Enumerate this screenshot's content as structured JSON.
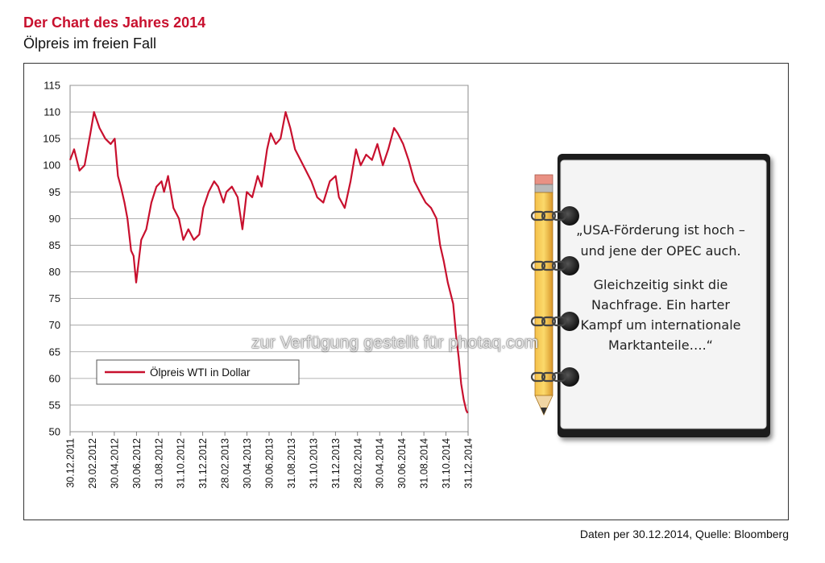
{
  "header": {
    "title": "Der Chart des Jahres 2014",
    "subtitle": "Ölpreis im freien Fall"
  },
  "footer": {
    "source": "Daten per 30.12.2014, Quelle: Bloomberg"
  },
  "watermark": "zur Verfügung gestellt für photaq.com",
  "note": {
    "lines": [
      "„USA-Förderung ist hoch –",
      "und jene der OPEC auch.",
      "",
      "Gleichzeitig sinkt die",
      "Nachfrage. Ein harter",
      "Kampf um internationale",
      "Marktanteile….“"
    ]
  },
  "colors": {
    "series": "#c8102e",
    "accent": "#c8102e",
    "grid": "#9a9a9a"
  },
  "chart_data": {
    "type": "line",
    "title": "",
    "xlabel": "",
    "ylabel": "",
    "ylim": [
      50,
      115
    ],
    "yticks": [
      50,
      55,
      60,
      65,
      70,
      75,
      80,
      85,
      90,
      95,
      100,
      105,
      110,
      115
    ],
    "xlim": [
      "2011-12-30",
      "2014-12-31"
    ],
    "xticks": [
      "30.12.2011",
      "29.02.2012",
      "30.04.2012",
      "30.06.2012",
      "31.08.2012",
      "31.10.2012",
      "31.12.2012",
      "28.02.2013",
      "30.04.2013",
      "30.06.2013",
      "31.08.2013",
      "31.10.2013",
      "31.12.2013",
      "28.02.2014",
      "30.04.2014",
      "30.06.2014",
      "31.08.2014",
      "31.10.2014",
      "31.12.2014"
    ],
    "grid": true,
    "legend_position": "lower-left",
    "series": [
      {
        "name": "Ölpreis WTI in Dollar",
        "x": [
          "2011-12-30",
          "2012-01-10",
          "2012-01-25",
          "2012-02-08",
          "2012-02-24",
          "2012-03-05",
          "2012-03-20",
          "2012-04-05",
          "2012-04-20",
          "2012-05-01",
          "2012-05-10",
          "2012-05-18",
          "2012-05-28",
          "2012-06-05",
          "2012-06-15",
          "2012-06-22",
          "2012-06-29",
          "2012-07-13",
          "2012-07-27",
          "2012-08-10",
          "2012-08-24",
          "2012-09-07",
          "2012-09-14",
          "2012-09-25",
          "2012-10-10",
          "2012-10-25",
          "2012-11-06",
          "2012-11-20",
          "2012-12-05",
          "2012-12-20",
          "2012-12-31",
          "2013-01-15",
          "2013-01-30",
          "2013-02-10",
          "2013-02-25",
          "2013-03-05",
          "2013-03-20",
          "2013-04-05",
          "2013-04-18",
          "2013-04-30",
          "2013-05-15",
          "2013-05-30",
          "2013-06-10",
          "2013-06-25",
          "2013-07-05",
          "2013-07-19",
          "2013-08-01",
          "2013-08-15",
          "2013-08-28",
          "2013-09-10",
          "2013-09-25",
          "2013-10-10",
          "2013-10-25",
          "2013-11-10",
          "2013-11-27",
          "2013-12-15",
          "2013-12-31",
          "2014-01-09",
          "2014-01-25",
          "2014-02-10",
          "2014-02-25",
          "2014-03-10",
          "2014-03-25",
          "2014-04-10",
          "2014-04-25",
          "2014-05-10",
          "2014-05-25",
          "2014-06-10",
          "2014-06-20",
          "2014-07-05",
          "2014-07-20",
          "2014-08-05",
          "2014-08-20",
          "2014-09-05",
          "2014-09-20",
          "2014-10-05",
          "2014-10-15",
          "2014-10-25",
          "2014-11-05",
          "2014-11-20",
          "2014-11-28",
          "2014-12-05",
          "2014-12-12",
          "2014-12-19",
          "2014-12-26",
          "2014-12-30"
        ],
        "values": [
          101,
          103,
          99,
          100,
          106,
          110,
          107,
          105,
          104,
          105,
          98,
          96,
          93,
          90,
          84,
          83,
          78,
          86,
          88,
          93,
          96,
          97,
          95,
          98,
          92,
          90,
          86,
          88,
          86,
          87,
          92,
          95,
          97,
          96,
          93,
          95,
          96,
          94,
          88,
          95,
          94,
          98,
          96,
          103,
          106,
          104,
          105,
          110,
          107,
          103,
          101,
          99,
          97,
          94,
          93,
          97,
          98,
          94,
          92,
          97,
          103,
          100,
          102,
          101,
          104,
          100,
          103,
          107,
          106,
          104,
          101,
          97,
          95,
          93,
          92,
          90,
          85,
          82,
          78,
          74,
          68,
          64,
          59,
          56,
          54,
          53.5
        ]
      }
    ]
  }
}
